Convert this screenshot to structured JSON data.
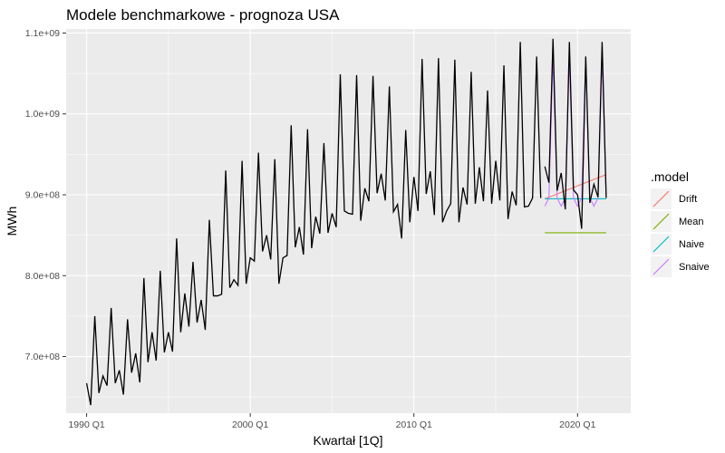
{
  "chart_data": {
    "type": "line",
    "title": "Modele benchmarkowe - prognoza USA",
    "xlabel": "Kwartał [1Q]",
    "ylabel": "MWh",
    "x_start": "1990 Q1",
    "x_ticks": [
      "1990 Q1",
      "2000 Q1",
      "2010 Q1",
      "2020 Q1"
    ],
    "y_ticks": [
      {
        "value": 700000000,
        "label": "7.0e+08"
      },
      {
        "value": 800000000,
        "label": "8.0e+08"
      },
      {
        "value": 900000000,
        "label": "9.0e+08"
      },
      {
        "value": 1000000000,
        "label": "1.0e+09"
      },
      {
        "value": 1100000000,
        "label": "1.1e+09"
      }
    ],
    "ylim": [
      630000000,
      1105000000
    ],
    "grid": true,
    "legend_placement": "right",
    "legend_title": ".model",
    "actual": {
      "color": "#000000",
      "values": [
        667000000,
        640000000,
        750000000,
        655000000,
        676000000,
        664000000,
        760000000,
        667000000,
        683000000,
        653000000,
        746000000,
        680000000,
        704000000,
        668000000,
        797000000,
        693000000,
        730000000,
        695000000,
        806000000,
        705000000,
        730000000,
        706000000,
        846000000,
        730000000,
        778000000,
        737000000,
        817000000,
        742000000,
        770000000,
        733000000,
        869000000,
        775000000,
        775000000,
        777000000,
        930000000,
        785000000,
        795000000,
        788000000,
        942000000,
        790000000,
        822000000,
        818000000,
        952000000,
        830000000,
        850000000,
        820000000,
        944000000,
        790000000,
        822000000,
        825000000,
        986000000,
        835000000,
        860000000,
        826000000,
        981000000,
        834000000,
        873000000,
        852000000,
        964000000,
        853000000,
        877000000,
        860000000,
        1049000000,
        880000000,
        877000000,
        876000000,
        1048000000,
        868000000,
        908000000,
        892000000,
        1047000000,
        902000000,
        926000000,
        893000000,
        1034000000,
        879000000,
        888000000,
        846000000,
        980000000,
        866000000,
        922000000,
        880000000,
        1068000000,
        901000000,
        929000000,
        875000000,
        1069000000,
        866000000,
        880000000,
        889000000,
        1067000000,
        866000000,
        909000000,
        888000000,
        1052000000,
        889000000,
        934000000,
        892000000,
        1029000000,
        889000000,
        942000000,
        893000000,
        1060000000,
        870000000,
        904000000,
        887000000,
        1089000000,
        885000000,
        886000000,
        896000000,
        1071000000,
        896000000
      ]
    },
    "series": [
      {
        "name": "Drift",
        "color": "#F8766D",
        "values": [
          895000000,
          897000000,
          899000000,
          901000000,
          903000000,
          905000000,
          907000000,
          909000000,
          911000000,
          913000000,
          915000000,
          917000000,
          919000000,
          921000000,
          923000000,
          925000000
        ]
      },
      {
        "name": "Mean",
        "color": "#7CAE00",
        "values": [
          853000000,
          853000000,
          853000000,
          853000000,
          853000000,
          853000000,
          853000000,
          853000000,
          853000000,
          853000000,
          853000000,
          853000000,
          853000000,
          853000000,
          853000000,
          853000000
        ]
      },
      {
        "name": "Naive",
        "color": "#00BFC4",
        "values": [
          895000000,
          895000000,
          895000000,
          895000000,
          895000000,
          895000000,
          895000000,
          895000000,
          895000000,
          895000000,
          895000000,
          895000000,
          895000000,
          895000000,
          895000000,
          895000000
        ]
      },
      {
        "name": "Snaive",
        "color": "#C77CFF",
        "values": [
          886000000,
          896000000,
          1071000000,
          896000000,
          886000000,
          896000000,
          1071000000,
          896000000,
          886000000,
          896000000,
          1071000000,
          896000000,
          886000000,
          896000000,
          1071000000,
          896000000
        ]
      }
    ],
    "post_actual": {
      "color": "#000000",
      "values": [
        935000000,
        915000000,
        1093000000,
        905000000,
        927000000,
        882000000,
        1089000000,
        906000000,
        900000000,
        858000000,
        1071000000,
        890000000,
        913000000,
        897000000,
        1089000000,
        896000000
      ]
    }
  }
}
